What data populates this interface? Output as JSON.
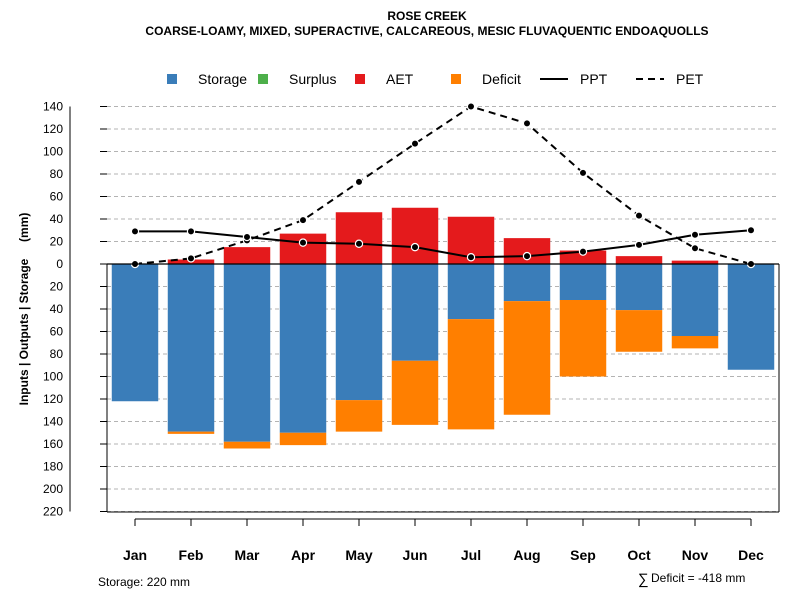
{
  "chart_data": {
    "type": "bar",
    "title": "ROSE CREEK",
    "subtitle": "COARSE-LOAMY, MIXED, SUPERACTIVE, CALCAREOUS, MESIC FLUVAQUENTIC ENDOAQUOLLS",
    "ylabel": "Inputs | Outputs | Storage     (mm)",
    "categories": [
      "Jan",
      "Feb",
      "Mar",
      "Apr",
      "May",
      "Jun",
      "Jul",
      "Aug",
      "Sep",
      "Oct",
      "Nov",
      "Dec"
    ],
    "ylim": [
      -220,
      140
    ],
    "yticks": [
      140,
      120,
      100,
      80,
      60,
      40,
      20,
      0,
      -20,
      -40,
      -60,
      -80,
      -100,
      -120,
      -140,
      -160,
      -180,
      -200,
      -220
    ],
    "ytick_labels": [
      "140",
      "120",
      "100",
      "80",
      "60",
      "40",
      "20",
      "0",
      "20",
      "40",
      "60",
      "80",
      "100",
      "120",
      "140",
      "160",
      "180",
      "200",
      "220"
    ],
    "legend": [
      {
        "key": "storage",
        "label": "Storage",
        "kind": "box"
      },
      {
        "key": "surplus",
        "label": "Surplus",
        "kind": "box"
      },
      {
        "key": "aet",
        "label": "AET",
        "kind": "box"
      },
      {
        "key": "deficit",
        "label": "Deficit",
        "kind": "box"
      },
      {
        "key": "ppt",
        "label": "PPT",
        "kind": "solid"
      },
      {
        "key": "pet",
        "label": "PET",
        "kind": "dashed"
      }
    ],
    "colors": {
      "storage": "#3a7db9",
      "surplus": "#4daf4a",
      "aet": "#e41a1c",
      "deficit": "#ff7f00",
      "line": "#000000",
      "grid": "#b3b3b3"
    },
    "series": [
      {
        "name": "Storage",
        "values": [
          122,
          149,
          158,
          150,
          121,
          86,
          49,
          33,
          32,
          41,
          64,
          94
        ]
      },
      {
        "name": "Deficit",
        "values": [
          0,
          2,
          6,
          11,
          28,
          57,
          98,
          101,
          68,
          37,
          11,
          0
        ]
      },
      {
        "name": "Surplus",
        "values": [
          0,
          0,
          0,
          0,
          0,
          0,
          0,
          0,
          0,
          0,
          0,
          0
        ]
      },
      {
        "name": "AET",
        "values": [
          0,
          4,
          15,
          27,
          46,
          50,
          42,
          23,
          12,
          7,
          3,
          0
        ]
      },
      {
        "name": "PPT",
        "values": [
          29,
          29,
          24,
          19,
          18,
          15,
          6,
          7,
          11,
          17,
          26,
          30
        ]
      },
      {
        "name": "PET",
        "values": [
          0,
          5,
          21,
          39,
          73,
          107,
          140,
          125,
          81,
          43,
          14,
          0
        ]
      }
    ]
  },
  "footer": {
    "storage_note": "Storage: 220 mm",
    "deficit_symbol": "∑",
    "deficit_note": "Deficit = -418 mm"
  }
}
